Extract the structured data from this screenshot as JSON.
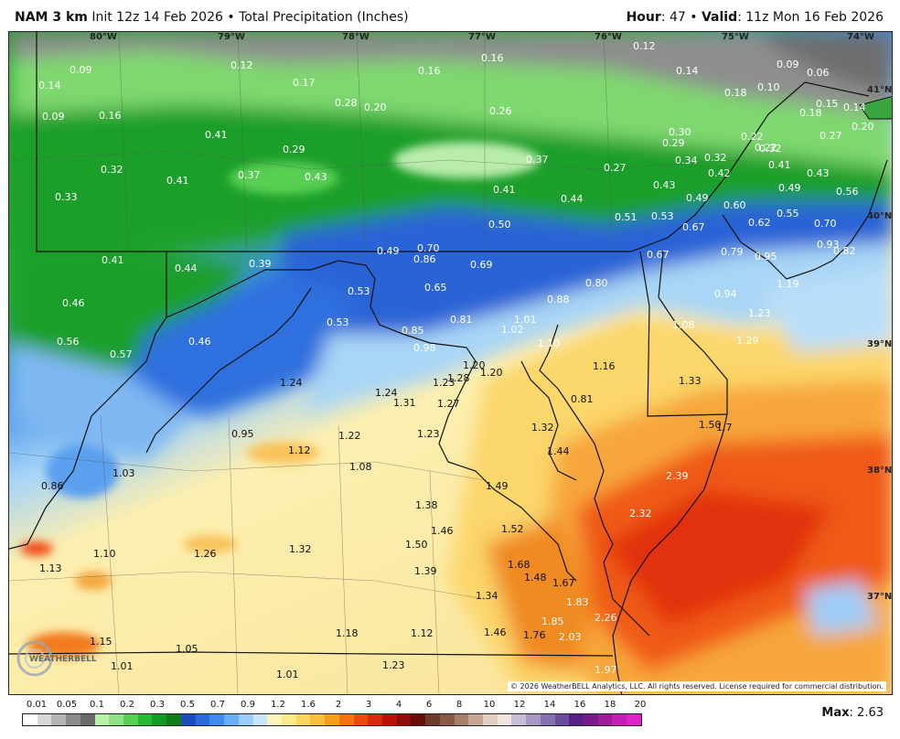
{
  "header": {
    "model": "NAM 3 km",
    "init_text": "Init 12z 14 Feb 2026",
    "bullet": "•",
    "product": "Total Precipitation (Inches)",
    "hour_label": "Hour",
    "hour_value": ": 47",
    "valid_label": "Valid",
    "valid_value": ": 11z Mon 16 Feb 2026"
  },
  "map": {
    "longitude_labels": [
      "80°W",
      "79°W",
      "78°W",
      "77°W",
      "76°W",
      "75°W",
      "74°W"
    ],
    "latitude_labels": [
      "41°N",
      "40°N",
      "39°N",
      "38°N",
      "37°N"
    ],
    "values": [
      {
        "text": "0.09"
      },
      {
        "text": "0.14"
      },
      {
        "text": "0.12"
      },
      {
        "text": "0.16"
      },
      {
        "text": "0.16"
      },
      {
        "text": "0.12"
      },
      {
        "text": "0.14"
      },
      {
        "text": "0.09"
      },
      {
        "text": "0.06"
      },
      {
        "text": "0.17"
      },
      {
        "text": "0.18"
      },
      {
        "text": "0.10"
      },
      {
        "text": "0.09"
      },
      {
        "text": "0.16"
      },
      {
        "text": "0.28"
      },
      {
        "text": "0.20"
      },
      {
        "text": "0.26"
      },
      {
        "text": "0.15"
      },
      {
        "text": "0.14"
      },
      {
        "text": "0.18"
      },
      {
        "text": "0.41"
      },
      {
        "text": "0.30"
      },
      {
        "text": "0.22"
      },
      {
        "text": "0.29"
      },
      {
        "text": "0.20"
      },
      {
        "text": "0.27"
      },
      {
        "text": "0.22"
      },
      {
        "text": "0.29"
      },
      {
        "text": "0.32"
      },
      {
        "text": "0.32"
      },
      {
        "text": "0.37"
      },
      {
        "text": "0.34"
      },
      {
        "text": "0.27"
      },
      {
        "text": "0.42"
      },
      {
        "text": "0.41"
      },
      {
        "text": "0.43"
      },
      {
        "text": "0.32"
      },
      {
        "text": "0.37"
      },
      {
        "text": "0.41"
      },
      {
        "text": "0.43"
      },
      {
        "text": "0.33"
      },
      {
        "text": "0.41"
      },
      {
        "text": "0.44"
      },
      {
        "text": "0.43"
      },
      {
        "text": "0.49"
      },
      {
        "text": "0.49"
      },
      {
        "text": "0.56"
      },
      {
        "text": "0.60"
      },
      {
        "text": "0.51"
      },
      {
        "text": "0.53"
      },
      {
        "text": "0.50"
      },
      {
        "text": "0.55"
      },
      {
        "text": "0.62"
      },
      {
        "text": "0.70"
      },
      {
        "text": "0.67"
      },
      {
        "text": "0.49"
      },
      {
        "text": "0.70"
      },
      {
        "text": "0.93"
      },
      {
        "text": "0.82"
      },
      {
        "text": "0.41"
      },
      {
        "text": "0.44"
      },
      {
        "text": "0.39"
      },
      {
        "text": "0.86"
      },
      {
        "text": "0.69"
      },
      {
        "text": "0.67"
      },
      {
        "text": "0.79"
      },
      {
        "text": "0.95"
      },
      {
        "text": "0.80"
      },
      {
        "text": "0.53"
      },
      {
        "text": "0.65"
      },
      {
        "text": "0.88"
      },
      {
        "text": "1.19"
      },
      {
        "text": "0.46"
      },
      {
        "text": "0.94"
      },
      {
        "text": "0.53"
      },
      {
        "text": "0.81"
      },
      {
        "text": "1.01"
      },
      {
        "text": "1.23"
      },
      {
        "text": "0.85"
      },
      {
        "text": "1.02"
      },
      {
        "text": "1.08"
      },
      {
        "text": "0.56"
      },
      {
        "text": "0.46"
      },
      {
        "text": "1.10"
      },
      {
        "text": "1.29"
      },
      {
        "text": "0.57"
      },
      {
        "text": "0.98"
      },
      {
        "text": "1.20"
      },
      {
        "text": "1.16"
      },
      {
        "text": "1.24"
      },
      {
        "text": "1.28"
      },
      {
        "text": "1.20"
      },
      {
        "text": "1.33"
      },
      {
        "text": "0.81"
      },
      {
        "text": "1.27"
      },
      {
        "text": "1.24"
      },
      {
        "text": "1.31"
      },
      {
        "text": "1.23"
      },
      {
        "text": "1.50"
      },
      {
        "text": "1.32"
      },
      {
        "text": "1.7"
      },
      {
        "text": "0.95"
      },
      {
        "text": "1.22"
      },
      {
        "text": "1.23"
      },
      {
        "text": "1.12"
      },
      {
        "text": "1.44"
      },
      {
        "text": "1.03"
      },
      {
        "text": "1.08"
      },
      {
        "text": "2.39"
      },
      {
        "text": "1.49"
      },
      {
        "text": "0.86"
      },
      {
        "text": "1.38"
      },
      {
        "text": "2.32"
      },
      {
        "text": "1.46"
      },
      {
        "text": "1.52"
      },
      {
        "text": "1.10"
      },
      {
        "text": "1.26"
      },
      {
        "text": "1.32"
      },
      {
        "text": "1.50"
      },
      {
        "text": "1.13"
      },
      {
        "text": "1.68"
      },
      {
        "text": "1.39"
      },
      {
        "text": "1.48"
      },
      {
        "text": "1.67"
      },
      {
        "text": "1.34"
      },
      {
        "text": "1.83"
      },
      {
        "text": "2.26"
      },
      {
        "text": "1.85"
      },
      {
        "text": "1.18"
      },
      {
        "text": "1.12"
      },
      {
        "text": "1.46"
      },
      {
        "text": "1.76"
      },
      {
        "text": "2.03"
      },
      {
        "text": "1.15"
      },
      {
        "text": "1.05"
      },
      {
        "text": "1.01"
      },
      {
        "text": "1.23"
      },
      {
        "text": "1.01"
      },
      {
        "text": "1.97"
      }
    ],
    "copyright": "© 2026 WeatherBELL Analytics, LLC. All rights reserved. License required for commercial distribution.",
    "logo_text": "WEATHERBELL"
  },
  "legend": {
    "labels": [
      "0.01",
      "0.05",
      "0.1",
      "0.2",
      "0.3",
      "0.5",
      "0.7",
      "0.9",
      "1.2",
      "1.6",
      "2",
      "3",
      "4",
      "6",
      "8",
      "10",
      "12",
      "14",
      "16",
      "18",
      "20"
    ],
    "colors": [
      "#ffffff",
      "#d8d8d8",
      "#b4b4b4",
      "#8c8c8c",
      "#6a6a6a",
      "#b6f3a4",
      "#8fe283",
      "#58d153",
      "#28b830",
      "#139a24",
      "#0f7c1a",
      "#1b4dbf",
      "#2a6cdc",
      "#3d8bef",
      "#68aef6",
      "#9bcdf8",
      "#c7e6fb",
      "#fdf4b8",
      "#fce98a",
      "#fbd561",
      "#f7bd3e",
      "#f59e1c",
      "#f2730f",
      "#ec4a0c",
      "#d8270b",
      "#b81208",
      "#8e0c0a",
      "#6b0c0c",
      "#6b3a2a",
      "#8a5a44",
      "#a77e68",
      "#c7a794",
      "#e0cfc0",
      "#f0e4dc",
      "#c8bdd8",
      "#a797c5",
      "#8570b0",
      "#6a4d9c",
      "#581f8a",
      "#7b1a8c",
      "#9c1c9c",
      "#bf1fb4",
      "#dc22c8"
    ],
    "max_label": "Max",
    "max_value": ": 2.63"
  }
}
